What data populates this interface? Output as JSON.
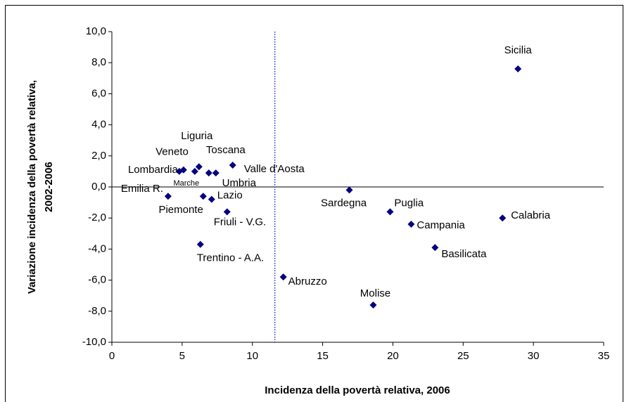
{
  "chart_data": {
    "type": "scatter",
    "xlabel": "Incidenza della povertà relativa, 2006",
    "ylabel": [
      "Variazione incidenza della povertà relativa,",
      "2002-2006"
    ],
    "color": "#000080",
    "points": [
      {
        "name": "Sicilia",
        "x": 28.9,
        "y": 7.6
      },
      {
        "name": "Calabria",
        "x": 27.8,
        "y": -2.0
      },
      {
        "name": "Basilicata",
        "x": 23.0,
        "y": -3.9
      },
      {
        "name": "Campania",
        "x": 21.3,
        "y": -2.4
      },
      {
        "name": "Puglia",
        "x": 19.8,
        "y": -1.6
      },
      {
        "name": "Molise",
        "x": 18.6,
        "y": -7.6
      },
      {
        "name": "Sardegna",
        "x": 16.9,
        "y": -0.2
      },
      {
        "name": "Abruzzo",
        "x": 12.2,
        "y": -5.8
      },
      {
        "name": "Trentino - A.A.",
        "x": 6.3,
        "y": -3.7
      },
      {
        "name": "Friuli - V.G.",
        "x": 8.2,
        "y": -1.6
      },
      {
        "name": "Lazio",
        "x": 7.1,
        "y": -0.8
      },
      {
        "name": "Piemonte",
        "x": 6.5,
        "y": -0.6
      },
      {
        "name": "Emilia R.",
        "x": 4.0,
        "y": -0.6
      },
      {
        "name": "Lombardia",
        "x": 4.8,
        "y": 1.0
      },
      {
        "name": "Veneto",
        "x": 5.1,
        "y": 1.1
      },
      {
        "name": "Marche",
        "x": 5.9,
        "y": 1.0
      },
      {
        "name": "Liguria",
        "x": 6.2,
        "y": 1.3
      },
      {
        "name": "Toscana",
        "x": 6.9,
        "y": 0.9
      },
      {
        "name": "Umbria",
        "x": 7.4,
        "y": 0.9
      },
      {
        "name": "Valle d'Aosta",
        "x": 8.6,
        "y": 1.4
      }
    ],
    "reference_x": 11.6,
    "xlim": [
      0,
      35
    ],
    "xticks": [
      0,
      5,
      10,
      15,
      20,
      25,
      30,
      35
    ],
    "ylim": [
      -10,
      10
    ],
    "yticks": [
      {
        "value": -10,
        "label": "-10,0"
      },
      {
        "value": -8,
        "label": "-8,0"
      },
      {
        "value": -6,
        "label": "-6,0"
      },
      {
        "value": -4,
        "label": "-4,0"
      },
      {
        "value": -2,
        "label": "-2,0"
      },
      {
        "value": 0,
        "label": "0,0"
      },
      {
        "value": 2,
        "label": "2,0"
      },
      {
        "value": 4,
        "label": "4,0"
      },
      {
        "value": 6,
        "label": "6,0"
      },
      {
        "value": 8,
        "label": "8,0"
      },
      {
        "value": 10,
        "label": "10,0"
      }
    ]
  }
}
